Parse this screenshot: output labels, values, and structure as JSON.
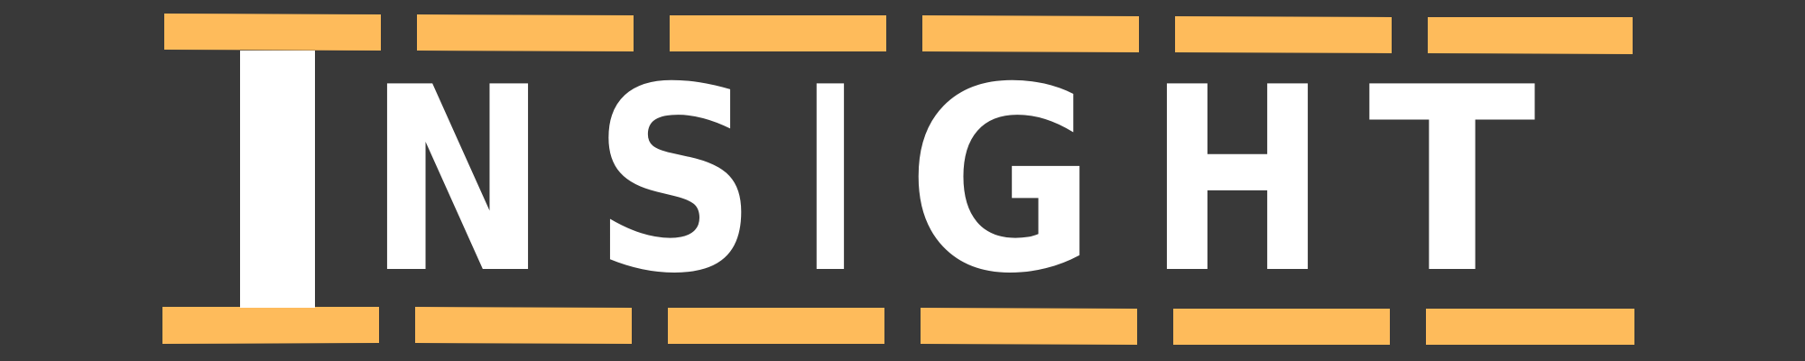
{
  "logo": {
    "word": "INSIGHT",
    "letters": [
      "N",
      "S",
      "I",
      "G",
      "H",
      "T"
    ],
    "colors": {
      "background": "#393939",
      "bars": "#FEBB5B",
      "letters": "#FFFFFF"
    }
  }
}
